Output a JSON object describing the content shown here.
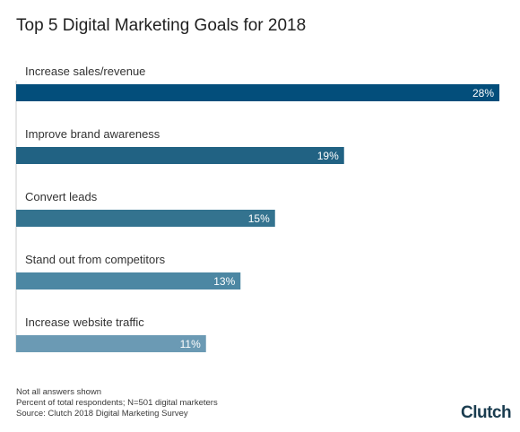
{
  "title": "Top 5 Digital Marketing Goals for 2018",
  "chart_data": {
    "type": "bar",
    "orientation": "horizontal",
    "categories": [
      "Increase sales/revenue",
      "Improve brand awareness",
      "Convert leads",
      "Stand out from competitors",
      "Increase website traffic"
    ],
    "values": [
      28,
      19,
      15,
      13,
      11
    ],
    "value_labels": [
      "28%",
      "19%",
      "15%",
      "13%",
      "11%"
    ],
    "colors": [
      "#034e7b",
      "#216283",
      "#34738f",
      "#4c87a3",
      "#6b9ab4"
    ],
    "xlim": [
      0,
      28
    ],
    "grid": false,
    "legend": "none"
  },
  "notes": [
    "Not all answers shown",
    "Percent of total respondents; N=501 digital marketers",
    "Source: Clutch 2018 Digital Marketing Survey"
  ],
  "logo": "Clutch"
}
